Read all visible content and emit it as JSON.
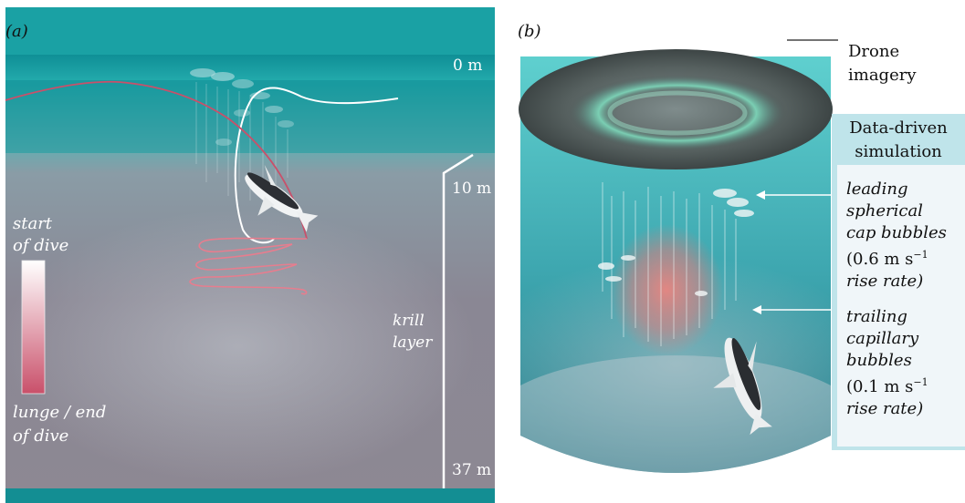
{
  "panel_a": {
    "tag": "(a)",
    "depth_labels": [
      "0 m",
      "10 m",
      "37 m"
    ],
    "krill_label": [
      "krill",
      "layer"
    ],
    "legend": {
      "start_label": [
        "start",
        "of dive"
      ],
      "end_label": [
        "lunge / end",
        "of dive"
      ],
      "color_start": "#ffffff",
      "color_end": "#c9506a"
    }
  },
  "panel_b": {
    "tag": "(b)",
    "drone_label": [
      "Drone",
      "imagery"
    ],
    "simulation_title": [
      "Data-driven",
      "simulation"
    ],
    "leading_label": [
      "leading",
      "spherical",
      "cap bubbles",
      "(0.6 m s",
      "rise rate)"
    ],
    "trailing_label": [
      "trailing",
      "capillary",
      "bubbles",
      "(0.1 m s",
      "rise rate)"
    ],
    "superscript": "−1"
  },
  "colors": {
    "water_surface": "#1a9ea2",
    "water_deep": "#8c8b95",
    "tube_top": "#49c6c7",
    "tube_bottom": "#2c7f8e",
    "box_border": "#bfe4ea",
    "dive_red": "#c9506a"
  }
}
